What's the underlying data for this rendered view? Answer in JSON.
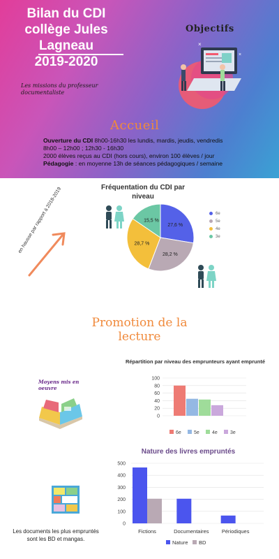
{
  "header": {
    "title_line1": "Bilan du CDI",
    "title_line2": "collège Jules Lagneau",
    "title_line3": "2019-2020",
    "objectifs": "Objectifs",
    "missions": "Les missions du professeur documentaliste"
  },
  "accueil": {
    "heading": "Accueil",
    "ouverture_label": "Ouverture du CDI",
    "ouverture_text": " 8h00-16h30 les lundis, mardis, jeudis, vendredis",
    "ouverture_text2": "8h00 – 12h00 ; 12h30 - 16h30",
    "eleves": "2000 élèves reçus au CDI (hors cours), environ 100 élèves / jour",
    "pedagogie_label": "Pédagogie",
    "pedagogie_text": " : en moyenne 13h de séances pédagogiques / semaine"
  },
  "frequentation_note": "en hausse par rapport à 2018-2019",
  "promotion": {
    "heading_line1": "Promotion de la",
    "heading_line2": "lecture",
    "moyens": "Moyens mis en oeuvre",
    "note": "Les documents les plus empruntés sont les BD et mangas."
  },
  "chart_data": [
    {
      "type": "pie",
      "title": "Fréquentation du CDI par niveau",
      "categories": [
        "6e",
        "5e",
        "4e",
        "3e"
      ],
      "values": [
        27.6,
        28.2,
        28.7,
        15.5
      ],
      "labels": [
        "27,6 %",
        "28,2 %",
        "28,7 %",
        "15,5 %"
      ],
      "colors": [
        "#5461e8",
        "#b9a9b4",
        "#f3bf3b",
        "#6bc7a4"
      ],
      "legend": "right"
    },
    {
      "type": "bar",
      "title": "Répartition par niveau des emprunteurs ayant emprunté",
      "categories": [
        "6e",
        "5e",
        "4e",
        "3e"
      ],
      "values": [
        80,
        45,
        43,
        28
      ],
      "colors": [
        "#ee7b74",
        "#94b8e3",
        "#9fdc9a",
        "#caa8dc"
      ],
      "ylim": [
        0,
        100
      ],
      "yticks": [
        0,
        20,
        40,
        60,
        80,
        100
      ],
      "grid": true,
      "legend": "bottom"
    },
    {
      "type": "bar",
      "title": "Nature des livres empruntés",
      "categories": [
        "Fictions",
        "Documentaires",
        "Périodiques"
      ],
      "series": [
        {
          "name": "Nature",
          "values": [
            465,
            205,
            65
          ],
          "color": "#4b55ee"
        },
        {
          "name": "BD",
          "values": [
            205,
            0,
            0
          ],
          "color": "#b9a9b4"
        }
      ],
      "ylim": [
        0,
        500
      ],
      "yticks": [
        0,
        100,
        200,
        300,
        400,
        500
      ],
      "grid": true,
      "legend": "bottom"
    }
  ]
}
